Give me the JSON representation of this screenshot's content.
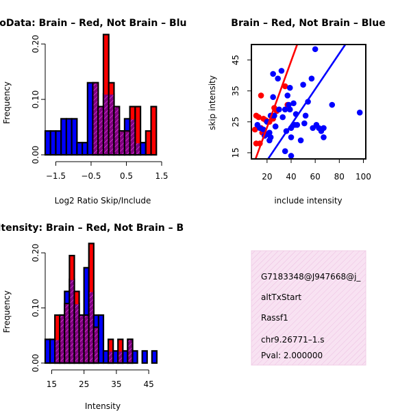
{
  "colors": {
    "red": "#ff0000",
    "blue": "#0000ff",
    "purple": "#800080",
    "panel_fill": "#f6dcef",
    "pval": "#8b0000"
  },
  "chart_data": [
    {
      "type": "bar",
      "title": "RatioData: Brain – Red, Not Brain – Blu",
      "xlabel": "Log2 Ratio Skip/Include",
      "ylabel": "Frequency",
      "xlim": [
        -1.8,
        1.5
      ],
      "ylim": [
        0,
        0.22
      ],
      "xticks": [
        -1.5,
        -0.5,
        0.5,
        1.5
      ],
      "xtick_labels": [
        "−1.5",
        "−0.5",
        "0.5",
        "1.5"
      ],
      "yticks": [
        0.0,
        0.1,
        0.2
      ],
      "ytick_labels": [
        "0.00",
        "0.10",
        "0.20"
      ],
      "bin_start": -1.8,
      "bin_width": 0.15,
      "series": [
        {
          "name": "Not Brain",
          "color": "blue",
          "values": [
            0.043,
            0.043,
            0.043,
            0.065,
            0.065,
            0.065,
            0.022,
            0.022,
            0.13,
            0.13,
            0.087,
            0.11,
            0.11,
            0.087,
            0.043,
            0.065,
            0.065,
            0.022,
            0.022,
            0,
            0,
            0
          ]
        },
        {
          "name": "Brain",
          "color": "red",
          "values": [
            0,
            0,
            0,
            0,
            0,
            0,
            0,
            0,
            0,
            0.13,
            0.087,
            0.217,
            0.13,
            0.087,
            0.043,
            0.043,
            0.087,
            0.087,
            0,
            0.043,
            0.087,
            0
          ]
        }
      ]
    },
    {
      "type": "scatter",
      "title": "Brain – Red, Not Brain – Blue",
      "xlabel": "include intensity",
      "ylabel": "skip intensity",
      "xlim": [
        7,
        102
      ],
      "ylim": [
        13,
        50
      ],
      "xticks": [
        20,
        40,
        60,
        80,
        100
      ],
      "xtick_labels": [
        "20",
        "40",
        "60",
        "80",
        "100"
      ],
      "yticks": [
        15,
        25,
        35,
        45
      ],
      "ytick_labels": [
        "15",
        "25",
        "35",
        "45"
      ],
      "series": [
        {
          "name": "Brain",
          "color": "red",
          "points": [
            [
              10,
              22.5
            ],
            [
              11,
              27
            ],
            [
              11,
              18
            ],
            [
              13,
              26.5
            ],
            [
              14,
              18
            ],
            [
              15,
              23
            ],
            [
              15,
              33.5
            ],
            [
              16,
              21.5
            ],
            [
              17,
              26
            ],
            [
              19,
              25.5
            ],
            [
              22,
              25
            ],
            [
              25,
              26
            ],
            [
              26,
              29.5
            ],
            [
              27,
              23.5
            ],
            [
              28,
              28.5
            ],
            [
              35,
              36.5
            ],
            [
              37,
              30.5
            ]
          ]
        },
        {
          "name": "Not Brain",
          "color": "blue",
          "points": [
            [
              12,
              24
            ],
            [
              14,
              23
            ],
            [
              17,
              22.5
            ],
            [
              18,
              20.5
            ],
            [
              20,
              21
            ],
            [
              20,
              25
            ],
            [
              22,
              21.5
            ],
            [
              22,
              19
            ],
            [
              23,
              20
            ],
            [
              23,
              27
            ],
            [
              25,
              33
            ],
            [
              25,
              40.5
            ],
            [
              26,
              27
            ],
            [
              27,
              23.5
            ],
            [
              29,
              39
            ],
            [
              30,
              29
            ],
            [
              32,
              41.5
            ],
            [
              33,
              26.5
            ],
            [
              35,
              29
            ],
            [
              35,
              15.5
            ],
            [
              36,
              22
            ],
            [
              37,
              33.5
            ],
            [
              38,
              30.5
            ],
            [
              39,
              36
            ],
            [
              39,
              29
            ],
            [
              40,
              23
            ],
            [
              40,
              20
            ],
            [
              40,
              14
            ],
            [
              42,
              31
            ],
            [
              43,
              24
            ],
            [
              44,
              27.5
            ],
            [
              45,
              24
            ],
            [
              48,
              19
            ],
            [
              50,
              37
            ],
            [
              51,
              24.5
            ],
            [
              52,
              27
            ],
            [
              54,
              31.5
            ],
            [
              57,
              39
            ],
            [
              58,
              23
            ],
            [
              60,
              48.5
            ],
            [
              61,
              24
            ],
            [
              63,
              23
            ],
            [
              65,
              22
            ],
            [
              67,
              20
            ],
            [
              67,
              23
            ],
            [
              74,
              30.5
            ],
            [
              97,
              28
            ]
          ]
        }
      ],
      "fit_lines": [
        {
          "color": "red",
          "from": [
            10,
            12.5
          ],
          "to": [
            45,
            50
          ]
        },
        {
          "color": "blue",
          "from": [
            20,
            12.5
          ],
          "to": [
            85,
            50
          ]
        }
      ]
    },
    {
      "type": "bar",
      "title": "ne Itensity: Brain – Red, Not Brain – B",
      "xlabel": "Intensity",
      "ylabel": "Frequency",
      "xlim": [
        13,
        49
      ],
      "ylim": [
        0,
        0.22
      ],
      "xticks": [
        15,
        25,
        35,
        45
      ],
      "xtick_labels": [
        "15",
        "25",
        "35",
        "45"
      ],
      "yticks": [
        0.0,
        0.1,
        0.2
      ],
      "ytick_labels": [
        "0.00",
        "0.10",
        "0.20"
      ],
      "bin_start": 13,
      "bin_width": 1.5,
      "series": [
        {
          "name": "Not Brain",
          "color": "blue",
          "values": [
            0.043,
            0.043,
            0.043,
            0.087,
            0.13,
            0.152,
            0.108,
            0.087,
            0.173,
            0.13,
            0.087,
            0.087,
            0.022,
            0.022,
            0.022,
            0.022,
            0.022,
            0.043,
            0.022,
            0,
            0.022,
            0,
            0.022,
            0
          ]
        },
        {
          "name": "Brain",
          "color": "red",
          "values": [
            0,
            0,
            0.087,
            0.087,
            0.108,
            0.195,
            0.13,
            0.087,
            0.087,
            0.217,
            0.065,
            0,
            0,
            0.043,
            0,
            0.043,
            0,
            0.043,
            0,
            0,
            0,
            0,
            0,
            0
          ]
        }
      ]
    }
  ],
  "info_panel": {
    "id": "G7183348@J947668@j_",
    "event": "altTxStart",
    "gene": "Rassf1",
    "location": "chr9.26771–1.s",
    "pval": "Pval: 2.000000"
  }
}
